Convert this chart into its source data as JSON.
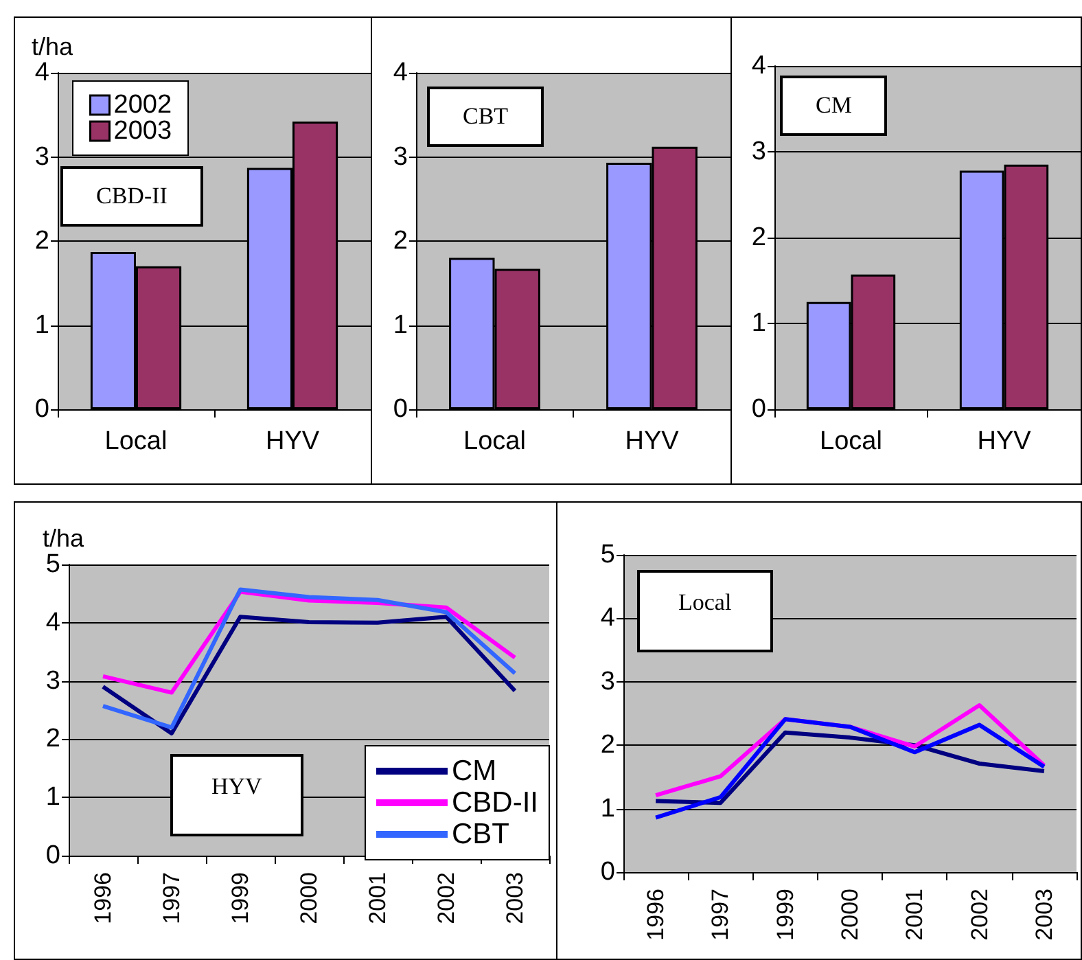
{
  "chart_data": [
    {
      "type": "bar",
      "title": "CBD-II",
      "ylabel": "t/ha",
      "categories": [
        "Local",
        "HYV"
      ],
      "ylim": [
        0,
        4
      ],
      "yticks": [
        0,
        1,
        2,
        3,
        4
      ],
      "grid": "y",
      "legend": "top left",
      "series": [
        {
          "name": "2002",
          "color": "#9999ff",
          "values": [
            1.87,
            2.87
          ]
        },
        {
          "name": "2003",
          "color": "#993366",
          "values": [
            1.7,
            3.42
          ]
        }
      ]
    },
    {
      "type": "bar",
      "title": "CBT",
      "categories": [
        "Local",
        "HYV"
      ],
      "ylim": [
        0,
        4
      ],
      "yticks": [
        0,
        1,
        2,
        3,
        4
      ],
      "grid": "y",
      "series": [
        {
          "color": "#9999ff",
          "values": [
            1.8,
            2.93
          ]
        },
        {
          "color": "#993366",
          "values": [
            1.67,
            3.12
          ]
        }
      ]
    },
    {
      "type": "bar",
      "title": "CM",
      "categories": [
        "Local",
        "HYV"
      ],
      "ylim": [
        0,
        4
      ],
      "yticks": [
        0,
        1,
        2,
        3,
        4
      ],
      "grid": "y",
      "series": [
        {
          "color": "#9999ff",
          "values": [
            1.25,
            2.78
          ]
        },
        {
          "color": "#993366",
          "values": [
            1.57,
            2.85
          ]
        }
      ]
    },
    {
      "type": "line",
      "title": "HYV",
      "ylabel": "t/ha",
      "categories": [
        "1996",
        "1997",
        "1999",
        "2000",
        "2001",
        "2002",
        "2003"
      ],
      "ylim": [
        0,
        5
      ],
      "yticks": [
        0,
        1,
        2,
        3,
        4,
        5
      ],
      "grid": "y",
      "legend": "bottom right",
      "series": [
        {
          "name": "CM",
          "color": "#000080",
          "values": [
            2.9,
            2.1,
            4.1,
            4.01,
            4.0,
            4.1,
            2.83
          ]
        },
        {
          "name": "CBD-II",
          "color": "#ff00ff",
          "values": [
            3.08,
            2.8,
            4.53,
            4.38,
            4.34,
            4.26,
            3.4
          ]
        },
        {
          "name": "CBT",
          "color": "#3366ff",
          "values": [
            2.57,
            2.2,
            4.57,
            4.44,
            4.39,
            4.18,
            3.13
          ]
        }
      ]
    },
    {
      "type": "line",
      "title": "Local",
      "categories": [
        "1996",
        "1997",
        "1999",
        "2000",
        "2001",
        "2002",
        "2003"
      ],
      "ylim": [
        0,
        5
      ],
      "yticks": [
        0,
        1,
        2,
        3,
        4,
        5
      ],
      "grid": "y",
      "series": [
        {
          "color": "#000080",
          "values": [
            1.12,
            1.09,
            2.2,
            2.12,
            2.0,
            1.71,
            1.59
          ]
        },
        {
          "color": "#ff00ff",
          "values": [
            1.21,
            1.51,
            2.41,
            2.29,
            1.98,
            2.63,
            1.68
          ]
        },
        {
          "color": "#0000ff",
          "values": [
            0.86,
            1.18,
            2.41,
            2.29,
            1.89,
            2.32,
            1.66
          ]
        }
      ]
    }
  ]
}
